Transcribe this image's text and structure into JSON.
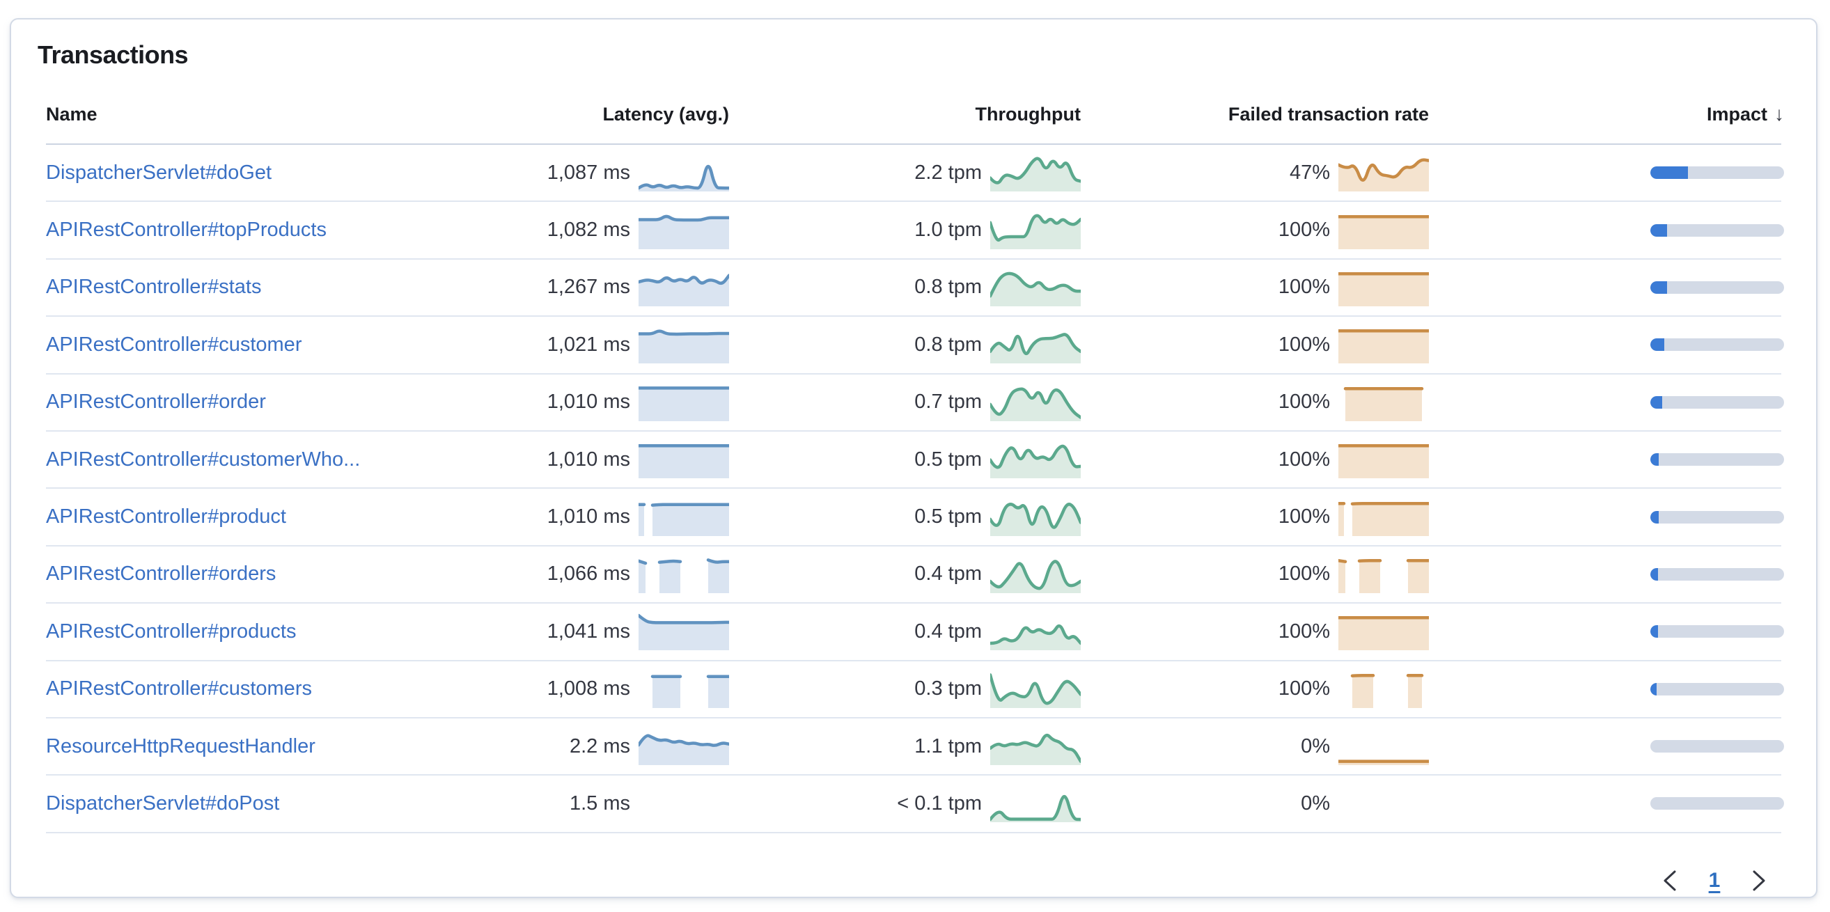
{
  "panel": {
    "title": "Transactions"
  },
  "table": {
    "columns": [
      "Name",
      "Latency (avg.)",
      "Throughput",
      "Failed transaction rate",
      "Impact"
    ],
    "sorted_by": "Impact",
    "sort_direction": "descending",
    "sort_arrow": "↓",
    "rows": [
      {
        "name": "DispatcherServlet#doGet",
        "latency": "1,087 ms",
        "latency_spark": [
          0.04,
          0.18,
          0.05,
          0.15,
          0.04,
          0.13,
          0.04,
          0.09,
          0.04,
          0.04,
          0.92,
          0.05,
          0.04,
          0.04
        ],
        "throughput": "2.2 tpm",
        "throughput_spark": [
          0.35,
          0.1,
          0.45,
          0.42,
          0.3,
          0.5,
          0.85,
          1.0,
          0.55,
          0.95,
          0.6,
          0.9,
          0.3,
          0.25
        ],
        "failed_rate": "47%",
        "failed_spark": [
          0.75,
          0.62,
          0.78,
          0.1,
          0.88,
          0.45,
          0.42,
          0.35,
          0.7,
          0.65,
          0.92,
          0.88
        ],
        "impact_pct": 28
      },
      {
        "name": "APIRestController#topProducts",
        "latency": "1,082 ms",
        "latency_spark": [
          0.84,
          0.84,
          0.84,
          0.84,
          0.97,
          0.84,
          0.83,
          0.83,
          0.83,
          0.83,
          0.9,
          0.9,
          0.9,
          0.9
        ],
        "throughput": "1.0 tpm",
        "throughput_spark": [
          0.75,
          0.15,
          0.3,
          0.32,
          0.32,
          0.32,
          0.32,
          0.9,
          1.0,
          0.7,
          0.9,
          0.68,
          0.88,
          0.72,
          0.68,
          0.85
        ],
        "failed_rate": "100%",
        "failed_spark": [
          0.93,
          0.93,
          0.93,
          0.93,
          0.93,
          0.93,
          0.93,
          0.93,
          0.93,
          0.93,
          0.93,
          0.93,
          0.93,
          0.93
        ],
        "impact_pct": 12.5
      },
      {
        "name": "APIRestController#stats",
        "latency": "1,267 ms",
        "latency_spark": [
          0.68,
          0.75,
          0.72,
          0.66,
          0.85,
          0.68,
          0.78,
          0.68,
          0.88,
          0.6,
          0.75,
          0.72,
          0.6,
          0.88
        ],
        "throughput": "0.8 tpm",
        "throughput_spark": [
          0.25,
          0.7,
          0.92,
          0.95,
          0.85,
          0.6,
          0.5,
          0.72,
          0.45,
          0.45,
          0.58,
          0.58,
          0.4,
          0.4
        ],
        "failed_rate": "100%",
        "failed_spark": [
          0.93,
          0.93,
          0.93,
          0.93,
          0.93,
          0.93,
          0.93,
          0.93,
          0.93,
          0.93,
          0.93,
          0.93,
          0.93,
          0.93
        ],
        "impact_pct": 12.5
      },
      {
        "name": "APIRestController#customer",
        "latency": "1,021 ms",
        "latency_spark": [
          0.84,
          0.84,
          0.84,
          0.95,
          0.84,
          0.83,
          0.83,
          0.84,
          0.84,
          0.84,
          0.84,
          0.85,
          0.85,
          0.85
        ],
        "throughput": "0.8 tpm",
        "throughput_spark": [
          0.3,
          0.62,
          0.45,
          0.28,
          0.95,
          0.1,
          0.5,
          0.68,
          0.7,
          0.7,
          0.78,
          0.85,
          0.45,
          0.3
        ],
        "failed_rate": "100%",
        "failed_spark": [
          0.93,
          0.93,
          0.93,
          0.93,
          0.93,
          0.93,
          0.93,
          0.93,
          0.93,
          0.93,
          0.93,
          0.93,
          0.93,
          0.93
        ],
        "impact_pct": 10.5
      },
      {
        "name": "APIRestController#order",
        "latency": "1,010 ms",
        "latency_spark": [
          0.95,
          0.95,
          0.95,
          0.95,
          0.95,
          0.95,
          0.95,
          0.95,
          0.95,
          0.95,
          0.95,
          0.95,
          0.95,
          0.95
        ],
        "throughput": "0.7 tpm",
        "throughput_spark": [
          0.45,
          0.08,
          0.25,
          0.8,
          0.92,
          0.92,
          0.55,
          0.92,
          0.35,
          0.9,
          0.88,
          0.5,
          0.2,
          0.05
        ],
        "failed_rate": "100%",
        "failed_spark": [
          null,
          0.93,
          0.93,
          0.93,
          0.93,
          0.93,
          0.93,
          0.93,
          0.93,
          0.93,
          0.93,
          0.93,
          0.93,
          null
        ],
        "impact_pct": 9
      },
      {
        "name": "APIRestController#customerWho...",
        "latency": "1,010 ms",
        "latency_spark": [
          0.93,
          0.93,
          0.93,
          0.93,
          0.93,
          0.93,
          0.93,
          0.93,
          0.93,
          0.93,
          0.93,
          0.93,
          0.93,
          0.93
        ],
        "throughput": "0.5 tpm",
        "throughput_spark": [
          0.5,
          0.1,
          0.7,
          0.95,
          0.4,
          0.9,
          0.5,
          0.62,
          0.45,
          0.88,
          0.95,
          0.28,
          0.3
        ],
        "failed_rate": "100%",
        "failed_spark": [
          0.93,
          0.93,
          0.93,
          0.93,
          0.93,
          0.93,
          0.93,
          0.93,
          0.93,
          0.93,
          0.93,
          0.93,
          0.93,
          0.93
        ],
        "impact_pct": 6.5
      },
      {
        "name": "APIRestController#product",
        "latency": "1,010 ms",
        "latency_spark": [
          0.9,
          null,
          0.88,
          0.9,
          0.9,
          0.9,
          0.9,
          0.9,
          0.9,
          0.9,
          0.9,
          0.9,
          0.9,
          0.9
        ],
        "throughput": "0.5 tpm",
        "throughput_spark": [
          0.45,
          0.08,
          0.8,
          0.95,
          0.75,
          0.95,
          0.1,
          0.85,
          0.8,
          0.08,
          0.45,
          0.95,
          0.85,
          0.35
        ],
        "failed_rate": "100%",
        "failed_spark": [
          0.93,
          null,
          0.92,
          0.93,
          0.93,
          0.93,
          0.93,
          0.93,
          0.93,
          0.93,
          0.93,
          0.93,
          0.93,
          0.93
        ],
        "impact_pct": 6
      },
      {
        "name": "APIRestController#orders",
        "latency": "1,066 ms",
        "latency_spark": [
          0.92,
          0.85,
          null,
          0.88,
          0.9,
          0.92,
          0.9,
          null,
          null,
          null,
          0.95,
          0.87,
          0.9,
          0.9
        ],
        "throughput": "0.4 tpm",
        "throughput_spark": [
          0.3,
          0.05,
          0.28,
          0.6,
          0.95,
          0.35,
          0.08,
          0.08,
          0.85,
          0.95,
          0.2,
          0.15,
          0.3
        ],
        "failed_rate": "100%",
        "failed_spark": [
          0.93,
          0.9,
          null,
          0.92,
          0.93,
          0.93,
          0.93,
          null,
          null,
          null,
          0.93,
          0.93,
          0.93,
          0.93
        ],
        "impact_pct": 5.5
      },
      {
        "name": "APIRestController#products",
        "latency": "1,041 ms",
        "latency_spark": [
          1.0,
          0.82,
          0.78,
          0.78,
          0.78,
          0.78,
          0.78,
          0.78,
          0.78,
          0.78,
          0.78,
          0.78,
          0.79,
          0.79
        ],
        "throughput": "0.4 tpm",
        "throughput_spark": [
          0.15,
          0.15,
          0.32,
          0.2,
          0.28,
          0.7,
          0.45,
          0.6,
          0.45,
          0.45,
          0.78,
          0.25,
          0.4,
          0.15
        ],
        "failed_rate": "100%",
        "failed_spark": [
          0.93,
          0.93,
          0.93,
          0.93,
          0.93,
          0.93,
          0.93,
          0.93,
          0.93,
          0.93,
          0.93,
          0.93,
          0.93,
          0.93
        ],
        "impact_pct": 5.5
      },
      {
        "name": "APIRestController#customers",
        "latency": "1,008 ms",
        "latency_spark": [
          null,
          null,
          0.9,
          0.9,
          0.9,
          0.9,
          0.9,
          null,
          null,
          null,
          0.9,
          0.9,
          0.9,
          0.9
        ],
        "throughput": "0.3 tpm",
        "throughput_spark": [
          0.95,
          0.08,
          0.3,
          0.42,
          0.28,
          0.28,
          0.85,
          0.08,
          0.08,
          0.45,
          0.8,
          0.65,
          0.35
        ],
        "failed_rate": "100%",
        "failed_spark": [
          null,
          null,
          0.92,
          0.93,
          0.93,
          0.93,
          null,
          null,
          null,
          null,
          0.93,
          0.93,
          0.93,
          null
        ],
        "impact_pct": 4.8
      },
      {
        "name": "ResourceHttpRequestHandler",
        "latency": "2.2 ms",
        "latency_spark": [
          0.55,
          0.88,
          0.78,
          0.68,
          0.72,
          0.62,
          0.68,
          0.58,
          0.62,
          0.55,
          0.58,
          0.52,
          0.62,
          0.58
        ],
        "throughput": "1.1 tpm",
        "throughput_spark": [
          0.45,
          0.62,
          0.5,
          0.6,
          0.55,
          0.65,
          0.55,
          0.5,
          0.92,
          0.7,
          0.65,
          0.42,
          0.42,
          0.05
        ],
        "failed_rate": "0%",
        "failed_spark": [
          0.05,
          0.05,
          0.05,
          0.05,
          0.05,
          0.05,
          0.05,
          0.05,
          0.05,
          0.05,
          0.05,
          0.05
        ],
        "impact_pct": 0
      },
      {
        "name": "DispatcherServlet#doPost",
        "latency": "1.5 ms",
        "latency_spark": null,
        "throughput": "< 0.1 tpm",
        "throughput_spark": [
          0.02,
          0.35,
          0.03,
          0.03,
          0.03,
          0.03,
          0.03,
          0.03,
          0.03,
          0.95,
          0.03,
          0.02
        ],
        "failed_rate": "0%",
        "failed_spark": null,
        "impact_pct": 0
      }
    ]
  },
  "pagination": {
    "current_page": "1"
  },
  "colors": {
    "link": "#3a70c4",
    "latency_line": "#6092c0",
    "latency_fill": "#dae4f1",
    "throughput_line": "#5ba98d",
    "throughput_fill": "#dcebe3",
    "failed_line": "#c98c46",
    "failed_fill": "#f4e3cf",
    "impact_fill": "#3b7bd5",
    "impact_track": "#d3dae6"
  }
}
